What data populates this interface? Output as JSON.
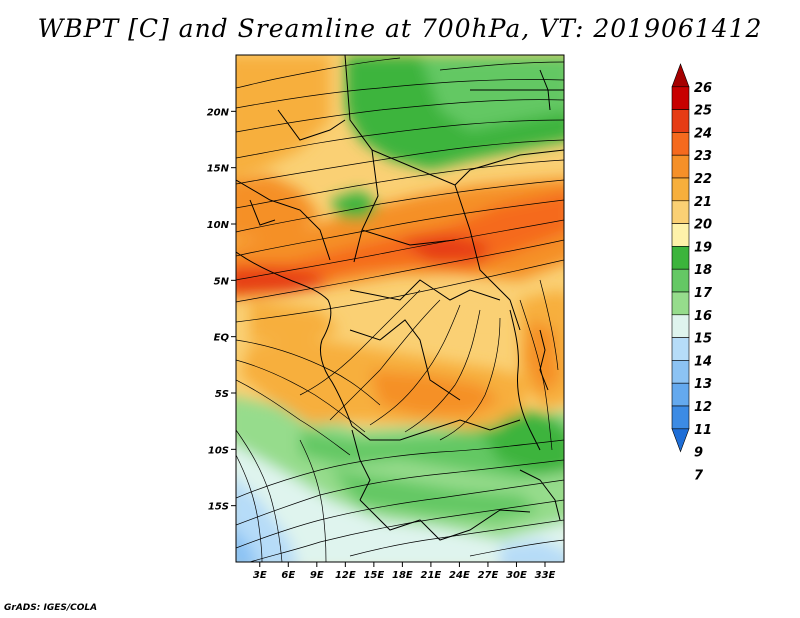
{
  "title": "WBPT [C] and Sreamline at 700hPa, VT: 2019061412",
  "credit": "GrADS: IGES/COLA",
  "map": {
    "variable": "Wet-bulb potential temperature",
    "units": "C",
    "level": "700hPa",
    "valid_time": "2019061412",
    "lat_labels": [
      "20N",
      "15N",
      "10N",
      "5N",
      "EQ",
      "5S",
      "10S",
      "15S"
    ],
    "lat_values": [
      20,
      15,
      10,
      5,
      0,
      -5,
      -10,
      -15
    ],
    "lon_labels": [
      "3E",
      "6E",
      "9E",
      "12E",
      "15E",
      "18E",
      "21E",
      "24E",
      "27E",
      "30E",
      "33E"
    ],
    "lon_values": [
      3,
      6,
      9,
      12,
      15,
      18,
      21,
      24,
      27,
      30,
      33
    ],
    "lat_range": [
      -20,
      25
    ],
    "lon_range": [
      0.5,
      35
    ]
  },
  "colorbar": {
    "labels": [
      "26",
      "25",
      "24",
      "23",
      "22",
      "21",
      "20",
      "19",
      "18",
      "17",
      "16",
      "15",
      "14",
      "13",
      "12",
      "11",
      "9",
      "7"
    ],
    "colors": [
      "#a50000",
      "#c80000",
      "#e63c14",
      "#f56a1e",
      "#f59028",
      "#f7af3c",
      "#fad074",
      "#fef2aa",
      "#3cb43c",
      "#64c864",
      "#96dc8c",
      "#dff4ee",
      "#b6dcf8",
      "#8cc3f4",
      "#64a9ee",
      "#3c8be4",
      "#1e6ed7"
    ]
  }
}
